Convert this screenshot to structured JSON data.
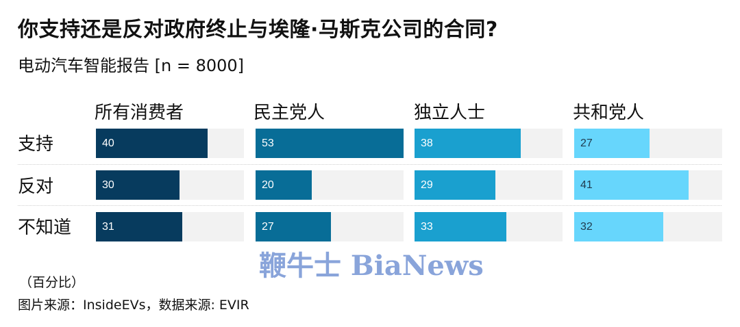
{
  "header": {
    "title": "你支持还是反对政府终止与埃隆·马斯克公司的合同?",
    "subtitle": "电动汽车智能报告 [n = 8000]"
  },
  "footer": {
    "unit_note": "（百分比）",
    "source": "图片来源：InsideEVs，数据来源: EVIR"
  },
  "watermark": "鞭牛士 BiaNews",
  "colors": {
    "all_consumers": "#073b5e",
    "democrats": "#086d97",
    "independents": "#1aa0cf",
    "republicans": "#67d6fc",
    "track": "#f2f2f2"
  },
  "chart_data": {
    "type": "bar",
    "orientation": "horizontal",
    "title": "你支持还是反对政府终止与埃隆·马斯克公司的合同?",
    "subtitle": "电动汽车智能报告 [n = 8000]",
    "unit": "百分比",
    "categories": [
      "支持",
      "反对",
      "不知道"
    ],
    "series": [
      {
        "name": "所有消费者",
        "values": [
          40,
          30,
          31
        ],
        "color": "#073b5e"
      },
      {
        "name": "民主党人",
        "values": [
          53,
          20,
          27
        ],
        "color": "#086d97"
      },
      {
        "name": "独立人士",
        "values": [
          38,
          29,
          33
        ],
        "color": "#1aa0cf"
      },
      {
        "name": "共和党人",
        "values": [
          27,
          41,
          32
        ],
        "color": "#67d6fc"
      }
    ],
    "xlim": [
      0,
      53
    ],
    "grid": false,
    "legend": "column headers above panels",
    "source": "图片来源：InsideEVs，数据来源: EVIR"
  },
  "panels": [
    {
      "label": "所有消费者",
      "values": [
        "40",
        "30",
        "31"
      ]
    },
    {
      "label": "民主党人",
      "values": [
        "53",
        "20",
        "27"
      ]
    },
    {
      "label": "独立人士",
      "values": [
        "38",
        "29",
        "33"
      ]
    },
    {
      "label": "共和党人",
      "values": [
        "27",
        "41",
        "32"
      ]
    }
  ],
  "rows": [
    "支持",
    "反对",
    "不知道"
  ]
}
